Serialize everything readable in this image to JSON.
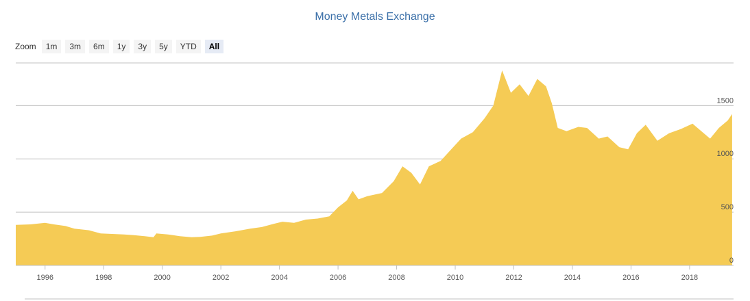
{
  "title": "Money Metals Exchange",
  "zoom": {
    "label": "Zoom",
    "buttons": [
      "1m",
      "3m",
      "6m",
      "1y",
      "3y",
      "5y",
      "YTD",
      "All"
    ],
    "active": "All"
  },
  "colors": {
    "area": "#f5cb55",
    "title": "#3a6fa8",
    "grid": "#c0c0c0"
  },
  "chart_data": {
    "type": "area",
    "title": "Money Metals Exchange",
    "xlabel": "",
    "ylabel": "",
    "xlim": [
      1995.0,
      2019.5
    ],
    "ylim": [
      0,
      1900
    ],
    "x_ticks": [
      "1996",
      "1998",
      "2000",
      "2002",
      "2004",
      "2006",
      "2008",
      "2010",
      "2012",
      "2014",
      "2016",
      "2018"
    ],
    "y_ticks": [
      "0",
      "500",
      "1000",
      "1500"
    ],
    "grid": true,
    "legend": "none",
    "x": [
      1995.0,
      1995.5,
      1996.0,
      1996.3,
      1996.7,
      1997.0,
      1997.5,
      1997.9,
      1998.3,
      1998.7,
      1999.0,
      1999.4,
      1999.7,
      1999.8,
      2000.2,
      2000.6,
      2001.0,
      2001.3,
      2001.7,
      2002.0,
      2002.5,
      2003.0,
      2003.4,
      2003.8,
      2004.1,
      2004.5,
      2004.9,
      2005.3,
      2005.7,
      2006.0,
      2006.3,
      2006.5,
      2006.7,
      2007.0,
      2007.5,
      2007.9,
      2008.2,
      2008.5,
      2008.8,
      2009.1,
      2009.5,
      2009.9,
      2010.2,
      2010.6,
      2011.0,
      2011.3,
      2011.6,
      2011.7,
      2011.9,
      2012.2,
      2012.5,
      2012.8,
      2013.1,
      2013.3,
      2013.5,
      2013.8,
      2014.2,
      2014.5,
      2014.9,
      2015.2,
      2015.6,
      2015.9,
      2016.2,
      2016.5,
      2016.9,
      2017.3,
      2017.7,
      2018.1,
      2018.4,
      2018.7,
      2019.0,
      2019.3,
      2019.45
    ],
    "values": [
      380,
      385,
      400,
      385,
      370,
      345,
      330,
      300,
      295,
      290,
      285,
      275,
      265,
      300,
      290,
      275,
      265,
      268,
      280,
      300,
      320,
      345,
      360,
      390,
      410,
      400,
      430,
      440,
      460,
      545,
      610,
      700,
      620,
      650,
      680,
      790,
      930,
      870,
      760,
      930,
      980,
      1100,
      1190,
      1250,
      1380,
      1500,
      1830,
      1760,
      1620,
      1700,
      1590,
      1750,
      1680,
      1520,
      1290,
      1260,
      1300,
      1290,
      1190,
      1210,
      1110,
      1090,
      1240,
      1320,
      1170,
      1240,
      1280,
      1330,
      1260,
      1190,
      1290,
      1360,
      1420
    ]
  }
}
